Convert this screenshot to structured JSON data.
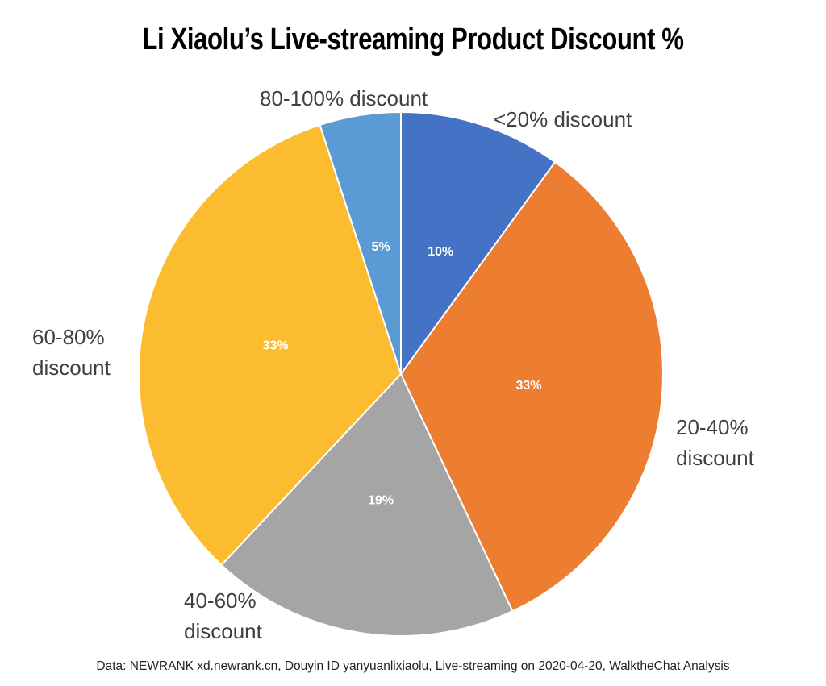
{
  "chart_data": {
    "type": "pie",
    "title": "Li Xiaolu’s Live-streaming Product Discount %",
    "source": "Data: NEWRANK xd.newrank.cn, Douyin ID yanyuanlixiaolu, Live-streaming on 2020-04-20, WalktheChat Analysis",
    "categories": [
      "<20% discount",
      "20-40% discount",
      "40-60% discount",
      "60-80% discount",
      "80-100% discount"
    ],
    "values": [
      10,
      33,
      19,
      33,
      5
    ],
    "value_labels": [
      "10%",
      "33%",
      "19%",
      "33%",
      "5%"
    ],
    "colors": [
      "#4472c4",
      "#ed7d31",
      "#a5a5a5",
      "#fbbd2f",
      "#5b9bd5"
    ]
  }
}
